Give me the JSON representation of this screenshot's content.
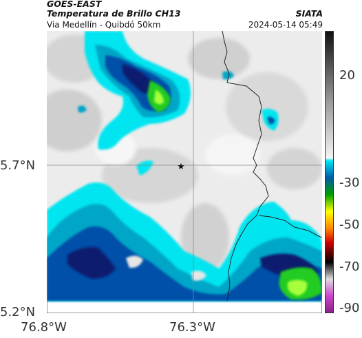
{
  "header": {
    "source": "GOES-EAST",
    "product": "Temperatura de Brillo CH13",
    "agency": "SIATA",
    "location": "Via Medellín - Quibdó 50km",
    "timestamp": "2024-05-14 05:49"
  },
  "axes": {
    "lat_labels": [
      "5.7°N",
      "5.2°N"
    ],
    "lon_labels": [
      "76.8°W",
      "76.3°W"
    ]
  },
  "colorbar": {
    "labels": [
      "20",
      "-30",
      "-50",
      "-70",
      "-90"
    ],
    "values": [
      20,
      -30,
      -50,
      -70,
      -90
    ],
    "range": [
      -95,
      35
    ]
  },
  "marker": {
    "type": "star",
    "icon": "star-icon"
  },
  "palette": {
    "background": "#ffffff",
    "cloud_warm": "#d9d9d9",
    "cloud_cool": "#f0f0f0",
    "cyan": "#00e5f0",
    "teal": "#00a6c8",
    "blue": "#0050a8",
    "navy": "#0a1d6e",
    "green": "#22cc22",
    "lime": "#a8ff3a",
    "border_line": "#222222",
    "grid_line": "#888888"
  }
}
